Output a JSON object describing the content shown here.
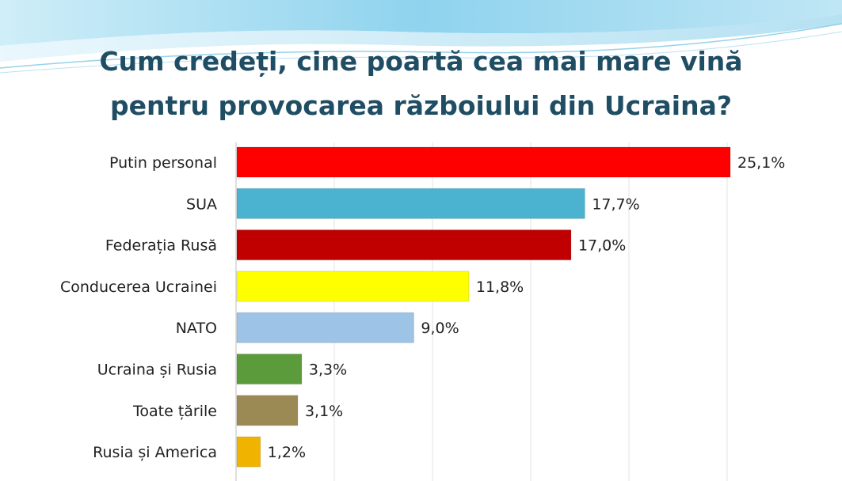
{
  "title_lines": [
    "Cum credeți, cine poartă cea mai mare vină",
    "pentru provocarea războiului din  Ucraina?"
  ],
  "chart_data": {
    "type": "bar",
    "orientation": "horizontal",
    "title": "Cum credeți, cine poartă cea mai mare vină pentru provocarea războiului din  Ucraina?",
    "categories": [
      "Putin personal",
      "SUA",
      "Federația Rusă",
      "Conducerea Ucrainei",
      "NATO",
      "Ucraina și Rusia",
      "Toate țările",
      "Rusia și America"
    ],
    "values": [
      25.1,
      17.7,
      17.0,
      11.8,
      9.0,
      3.3,
      3.1,
      1.2
    ],
    "value_labels": [
      "25,1%",
      "17,7%",
      "17,0%",
      "11,8%",
      "9,0%",
      "3,3%",
      "3,1%",
      "1,2%"
    ],
    "colors": [
      "#ff0000",
      "#4bb3d0",
      "#c00000",
      "#ffff00",
      "#9dc3e6",
      "#5b9b3c",
      "#9c8a55",
      "#f0b400"
    ],
    "unit": "%",
    "xlim": [
      0,
      25.1
    ],
    "grid": true,
    "legend": "none"
  }
}
